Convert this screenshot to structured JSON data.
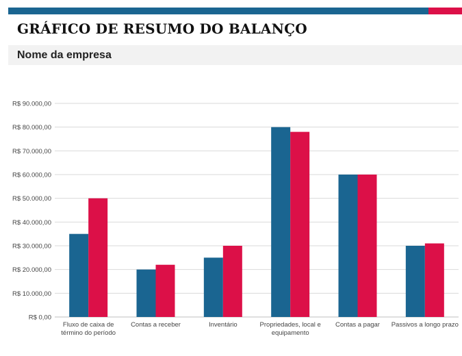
{
  "header": {
    "title": "GRÁFICO DE RESUMO DO BALANÇO",
    "company": "Nome da empresa"
  },
  "colors": {
    "accent_blue": "#1a6591",
    "accent_red": "#dc1048"
  },
  "chart_data": {
    "type": "bar",
    "categories": [
      [
        "Fluxo de caixa de",
        "término do período"
      ],
      [
        "Contas a receber"
      ],
      [
        "Inventário"
      ],
      [
        "Propriedades, local e",
        "equipamento"
      ],
      [
        "Contas a pagar"
      ],
      [
        "Passivos a longo prazo"
      ]
    ],
    "series": [
      {
        "values": [
          35000,
          20000,
          25000,
          80000,
          60000,
          30000
        ],
        "color": "#1a6591"
      },
      {
        "values": [
          50000,
          22000,
          30000,
          78000,
          60000,
          31000
        ],
        "color": "#dc1048"
      }
    ],
    "ylim": [
      0,
      90000
    ],
    "yticks": [
      "R$ 0,00",
      "R$ 10.000,00",
      "R$ 20.000,00",
      "R$ 30.000,00",
      "R$ 40.000,00",
      "R$ 50.000,00",
      "R$ 60.000,00",
      "R$ 70.000,00",
      "R$ 80.000,00",
      "R$ 90.000,00"
    ],
    "grid": true,
    "legend": "none"
  }
}
